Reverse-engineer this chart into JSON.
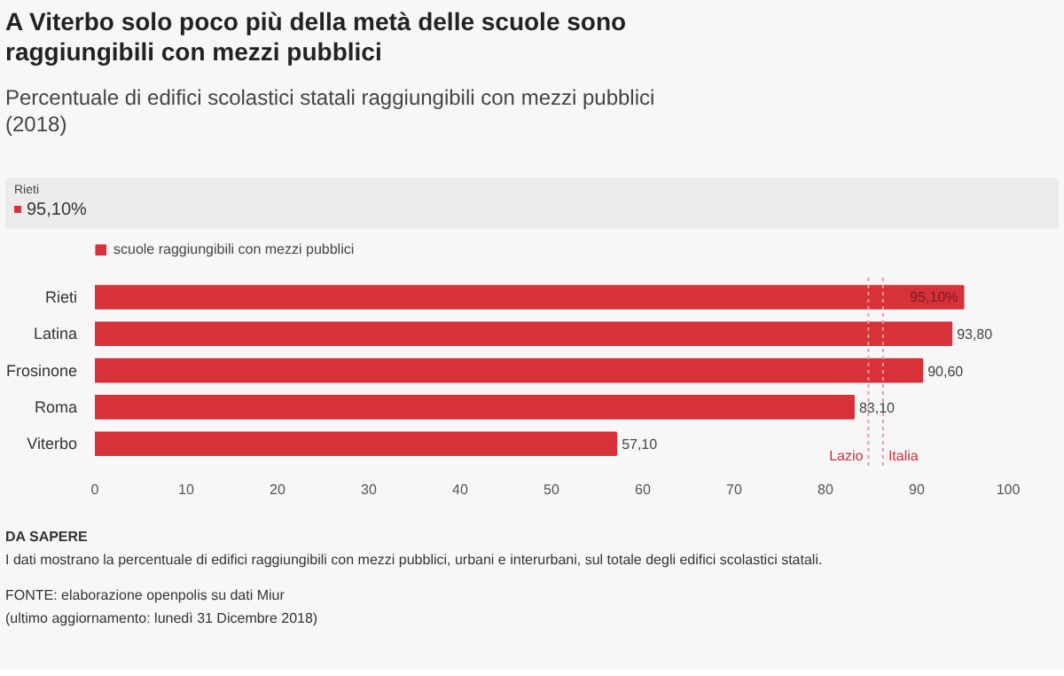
{
  "chart_data": {
    "type": "bar",
    "orientation": "horizontal",
    "title": "A Viterbo solo poco più della metà delle scuole sono raggiungibili con mezzi pubblici",
    "subtitle": "Percentuale di edifici scolastici statali raggiungibili con mezzi pubblici (2018)",
    "categories": [
      "Rieti",
      "Latina",
      "Frosinone",
      "Roma",
      "Viterbo"
    ],
    "series": [
      {
        "name": "scuole raggiungibili con mezzi pubblici",
        "color": "#d7313a",
        "values": [
          95.1,
          93.8,
          90.6,
          83.1,
          57.1
        ],
        "value_labels": [
          "95,10%",
          "93,80",
          "90,60",
          "83,10",
          "57,10"
        ]
      }
    ],
    "xlim": [
      0,
      100
    ],
    "xticks": [
      0,
      10,
      20,
      30,
      40,
      50,
      60,
      70,
      80,
      90,
      100
    ],
    "ref_lines": [
      {
        "axis": "x",
        "value": 84.7,
        "label": "Lazio",
        "color": "#e89aa2",
        "line_style": "dotted"
      },
      {
        "axis": "x",
        "value": 86.3,
        "label": "Italia",
        "color": "#e89aa2",
        "line_style": "dotted"
      }
    ],
    "legend": "top left",
    "grid": false,
    "annotations": [
      "Rieti",
      "95,10%",
      "DA SAPERE",
      "I dati mostrano la percentuale di edifici raggiungibili con mezzi pubblici, urbani e interurbani, sul totale degli edifici scolastici statali.",
      "FONTE: elaborazione openpolis su dati Miur",
      "(ultimo aggiornamento: lunedì 31 Dicembre 2018)"
    ]
  }
}
